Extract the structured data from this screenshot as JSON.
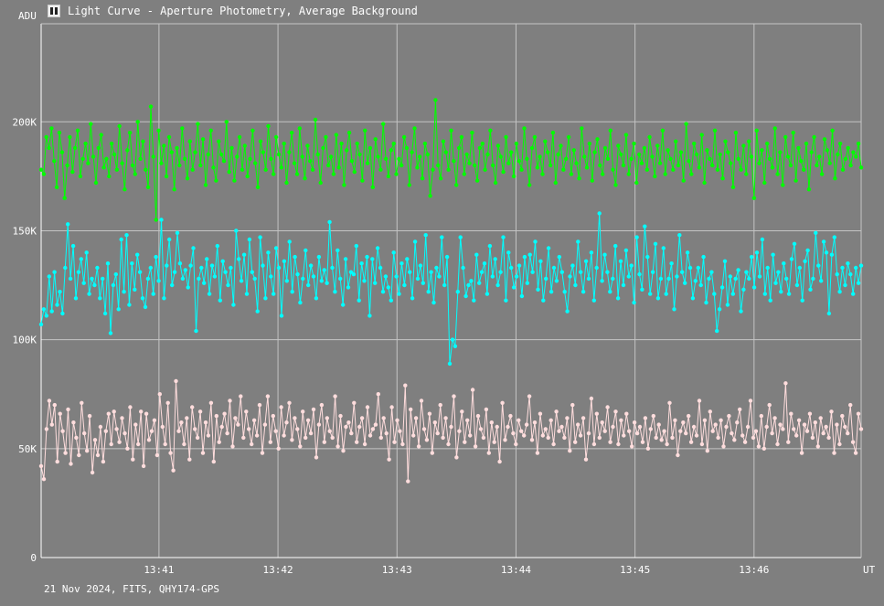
{
  "window": {
    "title": "Light Curve - Aperture Photometry, Average Background",
    "icon": "light-curve-app-icon"
  },
  "footer": {
    "text": "21 Nov 2024, FITS, QHY174-GPS"
  },
  "chart_data": {
    "type": "line",
    "title": "Light Curve - Aperture Photometry, Average Background",
    "ylabel": "ADU",
    "xlabel": "UT",
    "ylim": [
      0,
      245000
    ],
    "y_ticks": [
      0,
      50000,
      100000,
      150000,
      200000
    ],
    "y_tick_labels": [
      "0",
      "50K",
      "100K",
      "150K",
      "200K"
    ],
    "x_ticks": [
      "13:41",
      "13:42",
      "13:43",
      "13:44",
      "13:45",
      "13:46"
    ],
    "x_tick_minutes": [
      41,
      42,
      43,
      44,
      45,
      46
    ],
    "xlim": [
      40.01,
      46.9
    ],
    "grid": true,
    "background": "#7f7f7f",
    "series": [
      {
        "color": "#00ff00",
        "x_start": 40.01,
        "x_end": 46.9,
        "values": [
          178000,
          176000,
          193000,
          188000,
          197000,
          182000,
          170000,
          195000,
          186000,
          165000,
          180000,
          193000,
          177000,
          188000,
          196000,
          175000,
          183000,
          190000,
          181000,
          199000,
          184000,
          172000,
          188000,
          194000,
          179000,
          183000,
          175000,
          190000,
          185000,
          178000,
          198000,
          181000,
          169000,
          187000,
          195000,
          180000,
          176000,
          200000,
          183000,
          191000,
          178000,
          170000,
          207000,
          184000,
          155000,
          196000,
          181000,
          189000,
          175000,
          193000,
          186000,
          169000,
          188000,
          180000,
          197000,
          183000,
          174000,
          191000,
          178000,
          186000,
          199000,
          180000,
          192000,
          171000,
          185000,
          196000,
          179000,
          173000,
          191000,
          185000,
          182000,
          200000,
          177000,
          188000,
          173000,
          184000,
          193000,
          178000,
          189000,
          175000,
          183000,
          196000,
          181000,
          170000,
          191000,
          186000,
          178000,
          198000,
          183000,
          176000,
          193000,
          185000,
          179000,
          190000,
          172000,
          186000,
          195000,
          181000,
          176000,
          197000,
          184000,
          174000,
          189000,
          182000,
          178000,
          201000,
          185000,
          172000,
          188000,
          193000,
          180000,
          184000,
          176000,
          194000,
          179000,
          190000,
          171000,
          187000,
          195000,
          182000,
          177000,
          190000,
          185000,
          173000,
          196000,
          181000,
          188000,
          170000,
          192000,
          184000,
          178000,
          199000,
          183000,
          175000,
          187000,
          190000,
          176000,
          183000,
          180000,
          193000,
          188000,
          171000,
          186000,
          197000,
          179000,
          184000,
          174000,
          190000,
          185000,
          166000,
          178000,
          210000,
          180000,
          174000,
          191000,
          186000,
          178000,
          196000,
          182000,
          171000,
          188000,
          193000,
          176000,
          185000,
          181000,
          195000,
          180000,
          173000,
          188000,
          190000,
          178000,
          185000,
          196000,
          180000,
          172000,
          189000,
          184000,
          177000,
          193000,
          181000,
          186000,
          175000,
          190000,
          182000,
          178000,
          197000,
          183000,
          171000,
          188000,
          193000,
          179000,
          184000,
          176000,
          191000,
          186000,
          180000,
          195000,
          172000,
          185000,
          189000,
          178000,
          183000,
          193000,
          176000,
          187000,
          181000,
          174000,
          197000,
          184000,
          179000,
          190000,
          173000,
          186000,
          192000,
          180000,
          176000,
          188000,
          183000,
          196000,
          178000,
          171000,
          189000,
          185000,
          180000,
          194000,
          176000,
          183000,
          190000,
          172000,
          185000,
          181000,
          188000,
          178000,
          193000,
          184000,
          175000,
          189000,
          181000,
          196000,
          176000,
          187000,
          183000,
          178000,
          191000,
          180000,
          186000,
          173000,
          199000,
          182000,
          176000,
          190000,
          185000,
          179000,
          194000,
          172000,
          187000,
          183000,
          180000,
          196000,
          178000,
          185000,
          174000,
          191000,
          186000,
          181000,
          170000,
          195000,
          183000,
          178000,
          189000,
          176000,
          191000,
          184000,
          165000,
          196000,
          181000,
          187000,
          172000,
          190000,
          183000,
          179000,
          197000,
          176000,
          186000,
          171000,
          193000,
          184000,
          180000,
          195000,
          173000,
          188000,
          182000,
          178000,
          190000,
          169000,
          186000,
          193000,
          180000,
          184000,
          176000,
          192000,
          187000,
          181000,
          196000,
          174000,
          185000,
          190000,
          178000,
          183000,
          188000,
          180000,
          186000,
          184000,
          190000,
          179000
        ]
      },
      {
        "color": "#00ffff",
        "x_start": 40.01,
        "x_end": 46.9,
        "values": [
          107000,
          114000,
          111000,
          129000,
          113000,
          131000,
          116000,
          122000,
          112000,
          133000,
          153000,
          128000,
          143000,
          119000,
          131000,
          137000,
          126000,
          140000,
          121000,
          128000,
          125000,
          133000,
          119000,
          128000,
          112000,
          135000,
          103000,
          125000,
          130000,
          114000,
          146000,
          122000,
          148000,
          116000,
          135000,
          123000,
          139000,
          131000,
          119000,
          115000,
          128000,
          133000,
          121000,
          138000,
          127000,
          155000,
          119000,
          134000,
          146000,
          125000,
          131000,
          149000,
          135000,
          128000,
          132000,
          124000,
          134000,
          142000,
          104000,
          128000,
          133000,
          126000,
          137000,
          121000,
          134000,
          129000,
          143000,
          118000,
          136000,
          131000,
          125000,
          133000,
          116000,
          150000,
          137000,
          127000,
          139000,
          121000,
          146000,
          131000,
          128000,
          113000,
          147000,
          134000,
          119000,
          140000,
          129000,
          121000,
          142000,
          133000,
          111000,
          136000,
          127000,
          145000,
          122000,
          138000,
          130000,
          117000,
          128000,
          141000,
          125000,
          134000,
          129000,
          119000,
          138000,
          127000,
          132000,
          126000,
          154000,
          133000,
          122000,
          141000,
          128000,
          116000,
          137000,
          124000,
          131000,
          130000,
          143000,
          118000,
          135000,
          127000,
          138000,
          111000,
          137000,
          126000,
          142000,
          133000,
          122000,
          129000,
          124000,
          118000,
          140000,
          129000,
          121000,
          135000,
          125000,
          137000,
          131000,
          119000,
          145000,
          128000,
          134000,
          126000,
          148000,
          122000,
          131000,
          117000,
          133000,
          129000,
          147000,
          125000,
          138000,
          89000,
          100000,
          97000,
          122000,
          147000,
          133000,
          120000,
          125000,
          127000,
          118000,
          139000,
          126000,
          131000,
          135000,
          121000,
          143000,
          129000,
          137000,
          125000,
          131000,
          147000,
          118000,
          140000,
          133000,
          124000,
          129000,
          134000,
          120000,
          138000,
          126000,
          139000,
          131000,
          145000,
          123000,
          136000,
          118000,
          128000,
          142000,
          122000,
          133000,
          127000,
          138000,
          131000,
          122000,
          113000,
          129000,
          134000,
          125000,
          145000,
          131000,
          122000,
          136000,
          128000,
          140000,
          118000,
          133000,
          158000,
          127000,
          139000,
          131000,
          122000,
          128000,
          143000,
          119000,
          136000,
          125000,
          141000,
          129000,
          134000,
          117000,
          147000,
          130000,
          123000,
          152000,
          138000,
          121000,
          131000,
          144000,
          119000,
          128000,
          142000,
          121000,
          128000,
          135000,
          114000,
          129000,
          148000,
          131000,
          126000,
          140000,
          133000,
          119000,
          127000,
          133000,
          125000,
          138000,
          117000,
          128000,
          131000,
          121000,
          104000,
          114000,
          124000,
          136000,
          116000,
          129000,
          121000,
          128000,
          132000,
          113000,
          123000,
          131000,
          128000,
          138000,
          124000,
          140000,
          129000,
          146000,
          121000,
          133000,
          118000,
          139000,
          126000,
          131000,
          122000,
          135000,
          128000,
          121000,
          137000,
          144000,
          125000,
          133000,
          118000,
          136000,
          141000,
          123000,
          128000,
          149000,
          134000,
          127000,
          145000,
          140000,
          112000,
          139000,
          147000,
          130000,
          122000,
          133000,
          125000,
          135000,
          130000,
          121000,
          133000,
          126000,
          134000
        ]
      },
      {
        "color": "#ffdddd",
        "x_start": 40.01,
        "x_end": 46.9,
        "values": [
          42000,
          36000,
          59000,
          72000,
          61000,
          70000,
          44000,
          66000,
          58000,
          48000,
          68000,
          43000,
          62000,
          55000,
          47000,
          71000,
          57000,
          49000,
          65000,
          39000,
          54000,
          47000,
          60000,
          44000,
          58000,
          66000,
          52000,
          67000,
          59000,
          53000,
          64000,
          57000,
          50000,
          69000,
          45000,
          61000,
          52000,
          67000,
          42000,
          66000,
          54000,
          58000,
          63000,
          47000,
          75000,
          60000,
          52000,
          71000,
          48000,
          40000,
          81000,
          58000,
          62000,
          52000,
          64000,
          45000,
          69000,
          59000,
          55000,
          67000,
          48000,
          62000,
          56000,
          71000,
          44000,
          65000,
          53000,
          60000,
          66000,
          57000,
          72000,
          51000,
          64000,
          61000,
          74000,
          55000,
          67000,
          59000,
          52000,
          63000,
          56000,
          70000,
          48000,
          61000,
          74000,
          53000,
          65000,
          58000,
          50000,
          69000,
          56000,
          62000,
          71000,
          54000,
          64000,
          59000,
          51000,
          67000,
          55000,
          63000,
          57000,
          68000,
          46000,
          61000,
          70000,
          53000,
          64000,
          58000,
          55000,
          74000,
          51000,
          65000,
          49000,
          60000,
          62000,
          57000,
          71000,
          53000,
          60000,
          64000,
          52000,
          69000,
          56000,
          59000,
          61000,
          75000,
          55000,
          64000,
          57000,
          45000,
          69000,
          53000,
          63000,
          58000,
          52000,
          79000,
          35000,
          68000,
          56000,
          64000,
          51000,
          72000,
          59000,
          54000,
          66000,
          48000,
          62000,
          57000,
          70000,
          55000,
          64000,
          52000,
          60000,
          74000,
          46000,
          58000,
          67000,
          53000,
          63000,
          56000,
          77000,
          51000,
          65000,
          59000,
          55000,
          68000,
          48000,
          62000,
          53000,
          60000,
          44000,
          71000,
          54000,
          60000,
          65000,
          57000,
          52000,
          63000,
          58000,
          56000,
          61000,
          74000,
          54000,
          62000,
          48000,
          66000,
          56000,
          59000,
          55000,
          63000,
          52000,
          67000,
          58000,
          60000,
          55000,
          64000,
          49000,
          70000,
          53000,
          61000,
          56000,
          64000,
          45000,
          57000,
          73000,
          52000,
          66000,
          55000,
          62000,
          58000,
          69000,
          53000,
          60000,
          67000,
          52000,
          63000,
          56000,
          66000,
          58000,
          51000,
          62000,
          57000,
          60000,
          53000,
          64000,
          50000,
          59000,
          65000,
          55000,
          61000,
          54000,
          58000,
          52000,
          71000,
          55000,
          63000,
          47000,
          58000,
          62000,
          57000,
          65000,
          53000,
          60000,
          56000,
          72000,
          52000,
          63000,
          49000,
          67000,
          58000,
          61000,
          55000,
          63000,
          51000,
          60000,
          65000,
          57000,
          54000,
          62000,
          68000,
          56000,
          53000,
          60000,
          72000,
          55000,
          58000,
          51000,
          65000,
          50000,
          60000,
          70000,
          57000,
          64000,
          52000,
          61000,
          59000,
          80000,
          53000,
          66000,
          59000,
          56000,
          63000,
          48000,
          61000,
          58000,
          66000,
          55000,
          62000,
          51000,
          64000,
          57000,
          60000,
          55000,
          67000,
          48000,
          61000,
          52000,
          65000,
          60000,
          57000,
          70000,
          53000,
          48000,
          66000,
          59000
        ]
      }
    ]
  }
}
